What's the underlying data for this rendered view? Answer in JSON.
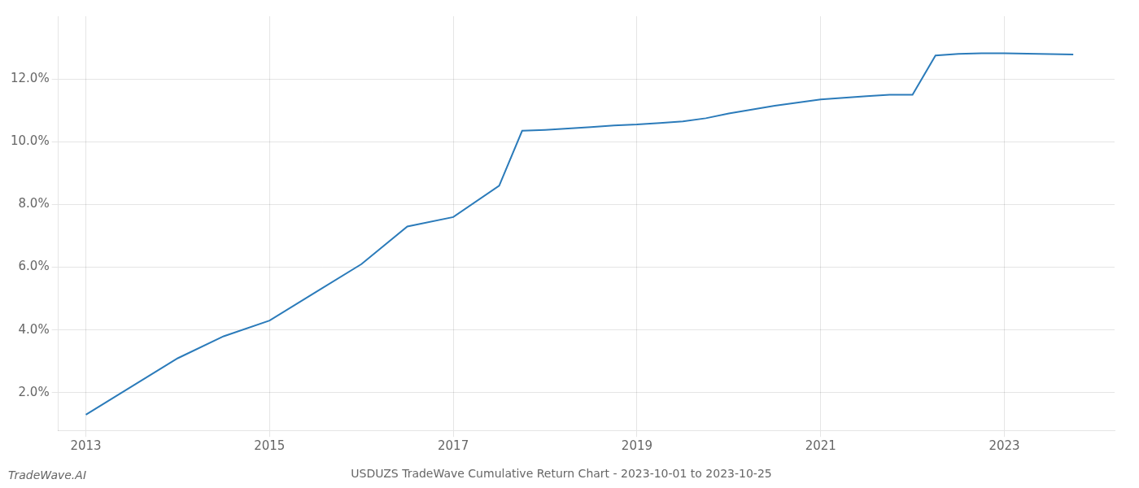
{
  "chart_data": {
    "type": "line",
    "title": "USDUZS TradeWave Cumulative Return Chart - 2023-10-01 to 2023-10-25",
    "annotations": [
      "TradeWave.AI"
    ],
    "x": [
      2013.0,
      2013.5,
      2014.0,
      2014.5,
      2015.0,
      2015.5,
      2016.0,
      2016.5,
      2017.0,
      2017.5,
      2017.75,
      2018.0,
      2018.25,
      2018.5,
      2018.75,
      2019.0,
      2019.25,
      2019.5,
      2019.75,
      2020.0,
      2020.5,
      2021.0,
      2021.25,
      2021.5,
      2021.75,
      2022.0,
      2022.25,
      2022.5,
      2022.75,
      2023.0,
      2023.75
    ],
    "values": [
      1.3,
      2.2,
      3.1,
      3.8,
      4.3,
      5.2,
      6.1,
      7.3,
      7.6,
      8.6,
      10.35,
      10.38,
      10.42,
      10.47,
      10.52,
      10.55,
      10.6,
      10.65,
      10.75,
      10.9,
      11.15,
      11.35,
      11.4,
      11.45,
      11.5,
      11.5,
      12.75,
      12.8,
      12.82,
      12.82,
      12.78
    ],
    "color": "#2b7bba",
    "xlim": [
      2012.7,
      2024.2
    ],
    "ylim": [
      0.8,
      14.0
    ],
    "xticks": [
      2013,
      2015,
      2017,
      2019,
      2021,
      2023
    ],
    "yticks": [
      {
        "value": 2.0,
        "label": "2.0%"
      },
      {
        "value": 4.0,
        "label": "4.0%"
      },
      {
        "value": 6.0,
        "label": "6.0%"
      },
      {
        "value": 8.0,
        "label": "8.0%"
      },
      {
        "value": 10.0,
        "label": "10.0%"
      },
      {
        "value": 12.0,
        "label": "12.0%"
      }
    ],
    "grid": true
  }
}
